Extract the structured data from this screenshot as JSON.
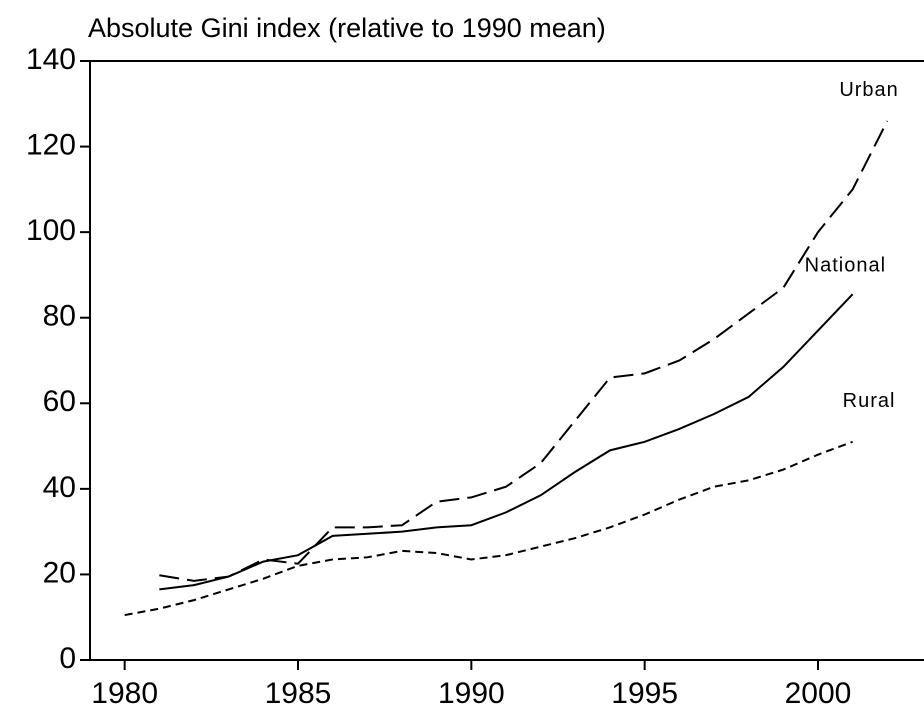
{
  "chart_data": {
    "type": "line",
    "title": "Absolute Gini index (relative to 1990 mean)",
    "x": [
      1980,
      1981,
      1982,
      1983,
      1984,
      1985,
      1986,
      1987,
      1988,
      1989,
      1990,
      1991,
      1992,
      1993,
      1994,
      1995,
      1996,
      1997,
      1998,
      1999,
      2000,
      2001,
      2002
    ],
    "series": [
      {
        "name": "Urban",
        "color": "#000000",
        "dash": "long",
        "values": [
          null,
          19.8,
          18.5,
          19.5,
          23.5,
          22.5,
          31,
          31,
          31.5,
          37,
          38,
          40.5,
          46,
          56,
          66,
          67,
          70,
          75,
          81,
          87,
          100,
          110,
          126
        ]
      },
      {
        "name": "National",
        "color": "#000000",
        "dash": "solid",
        "values": [
          null,
          16.5,
          17.5,
          19.5,
          23,
          24.5,
          29,
          29.5,
          30,
          31,
          31.5,
          34.5,
          38.5,
          44,
          49,
          51,
          54,
          57.5,
          61.5,
          68.5,
          77,
          85.5,
          null
        ]
      },
      {
        "name": "Rural",
        "color": "#000000",
        "dash": "short",
        "values": [
          10.5,
          12,
          14,
          16.5,
          19,
          22,
          23.5,
          24,
          25.5,
          25,
          23.5,
          24.5,
          26.5,
          28.5,
          31,
          34,
          37.5,
          40.5,
          42,
          44.5,
          48,
          51,
          null
        ]
      }
    ],
    "xlim": [
      1979,
      2003
    ],
    "xticks": [
      1980,
      1985,
      1990,
      1995,
      2000
    ],
    "ylim": [
      0,
      140
    ],
    "yticks": [
      0,
      20,
      40,
      60,
      80,
      100,
      120,
      140
    ]
  }
}
